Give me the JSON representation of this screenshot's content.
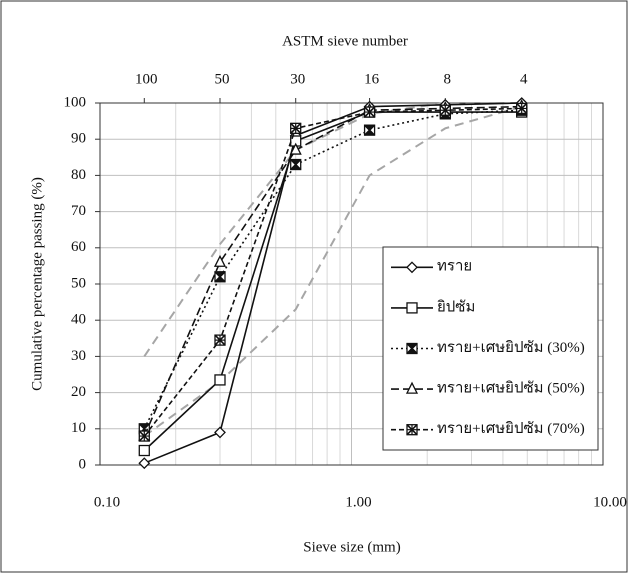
{
  "chart_data": {
    "type": "line",
    "title": "ASTM sieve number",
    "x_label": "Sieve size (mm)",
    "y_label": "Cumulative percentage passing (%)",
    "log_x": true,
    "grid": true,
    "legend": "lower right",
    "xlim": [
      0.1,
      10
    ],
    "xticks": [
      {
        "value": 0.1,
        "label": "0.10"
      },
      {
        "value": 1,
        "label": "1.00"
      },
      {
        "value": 10,
        "label": "10.00"
      }
    ],
    "ylim": [
      0,
      100
    ],
    "yticks": [
      0,
      10,
      20,
      30,
      40,
      50,
      60,
      70,
      80,
      90,
      100
    ],
    "top_ticks": [
      {
        "value": 0.15,
        "label": "100"
      },
      {
        "value": 0.3,
        "label": "50"
      },
      {
        "value": 0.6,
        "label": "30"
      },
      {
        "value": 1.18,
        "label": "16"
      },
      {
        "value": 2.36,
        "label": "8"
      },
      {
        "value": 4.75,
        "label": "4"
      }
    ],
    "x": [
      0.15,
      0.3,
      0.6,
      1.18,
      2.36,
      4.75
    ],
    "series": [
      {
        "name": "ทราย",
        "color": "#111111",
        "marker": "diamond",
        "dash": "solid",
        "values": [
          0.5,
          9,
          91,
          99,
          99.5,
          100
        ]
      },
      {
        "name": "ยิปซัม",
        "color": "#111111",
        "marker": "square",
        "dash": "solid",
        "values": [
          4,
          23.5,
          89.5,
          97.5,
          97.5,
          97.5
        ]
      },
      {
        "name": "ทราย+เศษยิปซัม (30%)",
        "color": "#111111",
        "marker": "boxx",
        "dash": "dotted",
        "values": [
          10,
          52,
          83,
          92.5,
          97,
          98
        ]
      },
      {
        "name": "ทราย+เศษยิปซัม (50%)",
        "color": "#111111",
        "marker": "triangle",
        "dash": "dashed",
        "values": [
          8,
          56,
          87,
          98,
          98.5,
          99
        ]
      },
      {
        "name": "ทราย+เศษยิปซัม (70%)",
        "color": "#111111",
        "marker": "star",
        "dash": "dashdot",
        "values": [
          8,
          34.5,
          93,
          97.5,
          98,
          98.5
        ]
      }
    ],
    "limit_lines": [
      {
        "color": "#a6a6a6",
        "values": [
          30,
          61,
          87,
          97,
          100,
          100
        ]
      },
      {
        "color": "#a6a6a6",
        "values": [
          8,
          23,
          43,
          80,
          93,
          99
        ]
      }
    ]
  }
}
